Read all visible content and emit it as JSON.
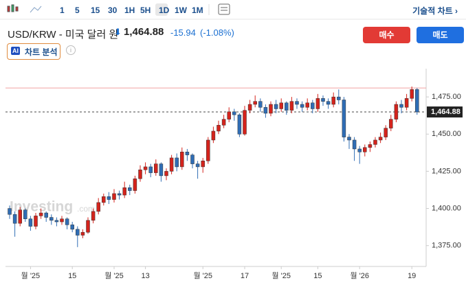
{
  "toolbar": {
    "intervals": [
      "1",
      "5",
      "15",
      "30",
      "1H",
      "5H",
      "1D",
      "1W",
      "1M"
    ],
    "technical": "기술적 차트"
  },
  "header": {
    "symbol": "USD/KRW - 미국 달러 원",
    "price": "1,464.88",
    "change": "-15.94",
    "change_pct": "(-1.08%)"
  },
  "buttons": {
    "buy": "매수",
    "sell": "매도"
  },
  "ai": {
    "badge": "AI",
    "label": "차트 분석"
  },
  "chart_data": {
    "type": "candlestick",
    "watermark": "Investing",
    "watermark_suffix": ".com",
    "up_color": "#d4231c",
    "down_color": "#2f6db5",
    "categories": [
      null,
      null,
      null,
      null,
      "월 '25",
      null,
      null,
      null,
      null,
      null,
      null,
      null,
      "15",
      null,
      null,
      null,
      null,
      null,
      null,
      null,
      "월 '25",
      null,
      null,
      null,
      null,
      null,
      "13",
      null,
      null,
      null,
      null,
      null,
      null,
      null,
      null,
      null,
      null,
      "월 '25",
      null,
      null,
      null,
      null,
      null,
      null,
      null,
      "17",
      null,
      null,
      null,
      null,
      null,
      null,
      "월 '25",
      null,
      null,
      null,
      null,
      null,
      null,
      "15",
      null,
      null,
      null,
      null,
      null,
      null,
      null,
      "월 '26",
      null,
      null,
      null,
      null,
      null,
      null,
      null,
      null,
      null,
      "19",
      null
    ],
    "open": [
      1400,
      1396,
      1390,
      1399,
      1393,
      1388,
      1395,
      1397,
      1394,
      1392,
      1391,
      1393,
      1389,
      1386,
      1382,
      1384,
      1392,
      1398,
      1404,
      1408,
      1406,
      1410,
      1409,
      1414,
      1412,
      1420,
      1426,
      1428,
      1424,
      1430,
      1422,
      1425,
      1434,
      1428,
      1438,
      1436,
      1430,
      1428,
      1432,
      1446,
      1452,
      1456,
      1460,
      1465,
      1463,
      1450,
      1466,
      1470,
      1472,
      1468,
      1464,
      1470,
      1467,
      1471,
      1466,
      1472,
      1470,
      1468,
      1471,
      1467,
      1474,
      1472,
      1470,
      1475,
      1473,
      1448,
      1446,
      1440,
      1438,
      1441,
      1443,
      1446,
      1448,
      1454,
      1460,
      1470,
      1468,
      1474,
      1480
    ],
    "high": [
      1402,
      1398,
      1401,
      1400,
      1395,
      1397,
      1400,
      1398,
      1396,
      1394,
      1395,
      1394,
      1391,
      1388,
      1386,
      1394,
      1400,
      1407,
      1410,
      1411,
      1413,
      1412,
      1418,
      1416,
      1422,
      1429,
      1431,
      1430,
      1433,
      1431,
      1427,
      1436,
      1437,
      1441,
      1440,
      1437,
      1432,
      1434,
      1448,
      1455,
      1459,
      1463,
      1468,
      1467,
      1464,
      1469,
      1473,
      1476,
      1474,
      1470,
      1472,
      1473,
      1474,
      1472,
      1475,
      1474,
      1472,
      1474,
      1473,
      1477,
      1476,
      1474,
      1478,
      1480,
      1475,
      1450,
      1448,
      1442,
      1443,
      1445,
      1448,
      1451,
      1456,
      1463,
      1472,
      1473,
      1477,
      1482,
      1481
    ],
    "low": [
      1393,
      1381,
      1388,
      1391,
      1385,
      1386,
      1393,
      1391,
      1389,
      1388,
      1389,
      1386,
      1384,
      1374,
      1380,
      1383,
      1390,
      1396,
      1402,
      1403,
      1404,
      1406,
      1407,
      1409,
      1410,
      1418,
      1423,
      1421,
      1422,
      1418,
      1419,
      1423,
      1425,
      1426,
      1432,
      1427,
      1420,
      1424,
      1430,
      1444,
      1450,
      1454,
      1458,
      1459,
      1448,
      1449,
      1464,
      1468,
      1465,
      1461,
      1462,
      1464,
      1465,
      1463,
      1464,
      1467,
      1465,
      1466,
      1464,
      1465,
      1469,
      1467,
      1468,
      1470,
      1445,
      1440,
      1432,
      1430,
      1435,
      1438,
      1441,
      1444,
      1446,
      1452,
      1458,
      1464,
      1466,
      1472,
      1463
    ],
    "close": [
      1396,
      1390,
      1399,
      1393,
      1388,
      1395,
      1397,
      1394,
      1392,
      1391,
      1393,
      1389,
      1386,
      1382,
      1384,
      1392,
      1398,
      1404,
      1408,
      1406,
      1410,
      1409,
      1414,
      1412,
      1420,
      1426,
      1428,
      1424,
      1430,
      1422,
      1425,
      1434,
      1428,
      1438,
      1436,
      1430,
      1428,
      1432,
      1446,
      1452,
      1456,
      1460,
      1465,
      1463,
      1450,
      1466,
      1470,
      1472,
      1468,
      1464,
      1470,
      1467,
      1471,
      1466,
      1472,
      1470,
      1468,
      1471,
      1467,
      1474,
      1472,
      1470,
      1475,
      1473,
      1448,
      1446,
      1440,
      1438,
      1441,
      1443,
      1446,
      1448,
      1454,
      1460,
      1470,
      1468,
      1474,
      1480,
      1464.88
    ],
    "ylim": [
      1361,
      1494
    ],
    "yticks": [
      {
        "value": 1375,
        "label": "1,375.00"
      },
      {
        "value": 1400,
        "label": "1,400.00"
      },
      {
        "value": 1425,
        "label": "1,425.00"
      },
      {
        "value": 1450,
        "label": "1,450.00"
      },
      {
        "value": 1475,
        "label": "1,475.00"
      }
    ],
    "last_price": {
      "value": 1464.88,
      "label": "1,464.88"
    },
    "reference_line": 1481
  }
}
